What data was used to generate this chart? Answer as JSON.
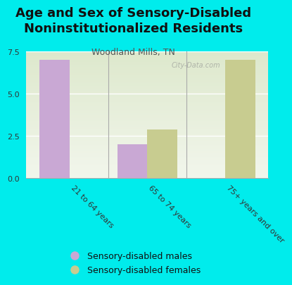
{
  "title": "Age and Sex of Sensory-Disabled\nNoninstitutionalized Residents",
  "subtitle": "Woodland Mills, TN",
  "categories": [
    "21 to 64 years",
    "65 to 74 years",
    "75+ years and over"
  ],
  "males": [
    7.0,
    2.0,
    0.0
  ],
  "females": [
    0.0,
    2.9,
    7.0
  ],
  "male_color": "#c9a8d4",
  "female_color": "#c8cc90",
  "background_color": "#00ecec",
  "plot_bg_top": "#dde8cc",
  "plot_bg_bottom": "#f0f4e8",
  "ylim": [
    0,
    7.5
  ],
  "yticks": [
    0,
    2.5,
    5,
    7.5
  ],
  "bar_width": 0.38,
  "legend_male": "Sensory-disabled males",
  "legend_female": "Sensory-disabled females",
  "title_fontsize": 13,
  "subtitle_fontsize": 9,
  "watermark": "City-Data.com"
}
